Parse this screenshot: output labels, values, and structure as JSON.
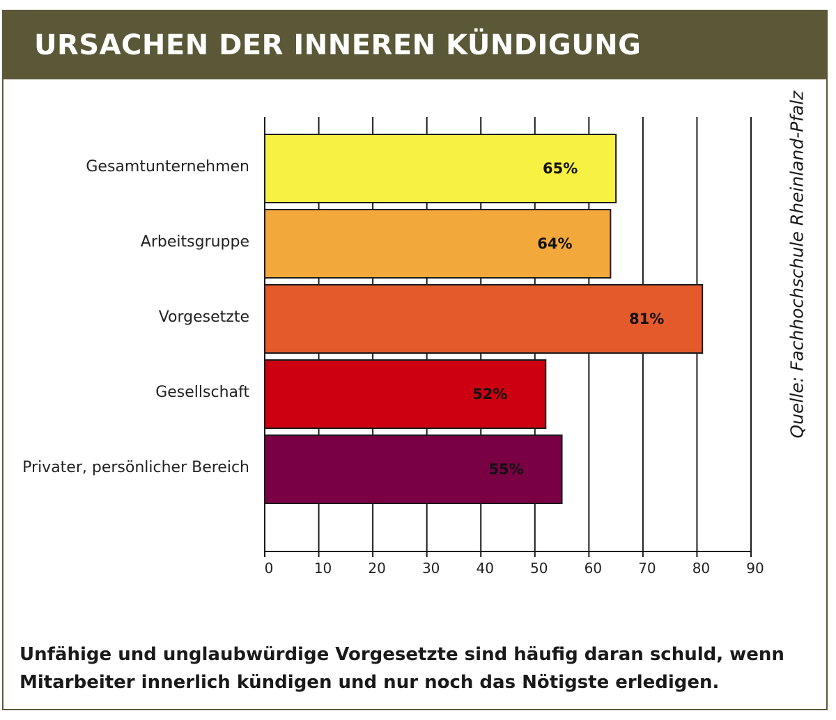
{
  "header": {
    "title": "URSACHEN DER INNEREN KÜNDIGUNG"
  },
  "source": "Quelle: Fachhochschule Rheinland-Pfalz",
  "caption": "Unfähige und unglaubwürdige Vorgesetzte sind häufig daran schuld, wenn Mitarbeiter innerlich kündigen und nur noch das Nötigste erledigen.",
  "colors": {
    "header_bg": "#5b5838"
  },
  "chart_data": {
    "type": "bar",
    "orientation": "horizontal",
    "categories": [
      "Gesamtunternehmen",
      "Arbeitsgruppe",
      "Vorgesetzte",
      "Gesellschaft",
      "Privater, persönlicher Bereich"
    ],
    "values": [
      65,
      64,
      81,
      52,
      55
    ],
    "data_labels": [
      "65%",
      "64%",
      "81%",
      "52%",
      "55%"
    ],
    "colors": [
      "#f7f143",
      "#f2a83a",
      "#e45a2b",
      "#cc0011",
      "#790043"
    ],
    "xlim": [
      0,
      90
    ],
    "xticks": [
      0,
      10,
      20,
      30,
      40,
      50,
      60,
      70,
      80,
      90
    ],
    "grid": true,
    "legend": "none"
  }
}
